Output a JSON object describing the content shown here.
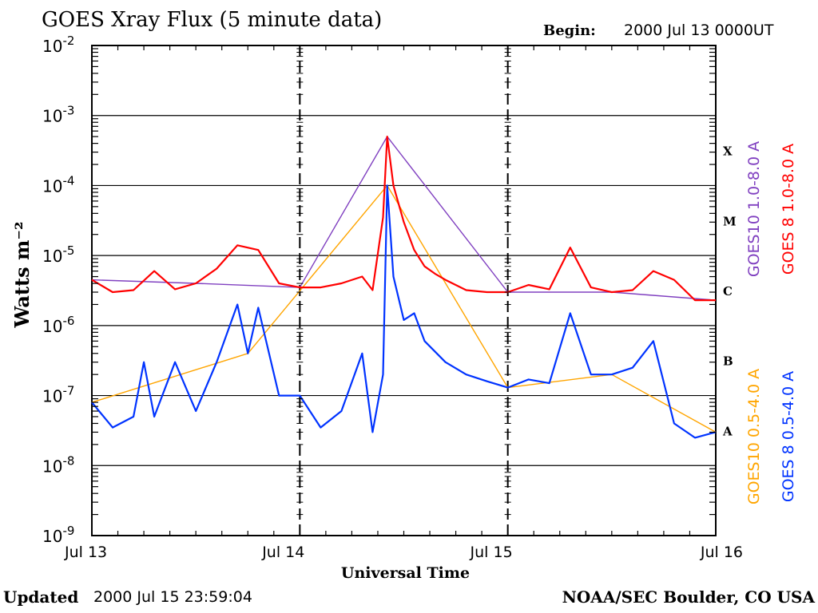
{
  "header": {
    "title": "GOES Xray Flux (5 minute data)",
    "begin_label": "Begin:",
    "begin_value": "2000 Jul 13 0000UT"
  },
  "footer": {
    "updated_label": "Updated",
    "updated_value": "2000 Jul 15 23:59:04",
    "credit": "NOAA/SEC Boulder, CO USA"
  },
  "colors": {
    "goes8_long": "#ff0000",
    "goes10_long": "#8040c0",
    "goes8_short": "#0033ff",
    "goes10_short": "#ffa500",
    "frame": "#000000"
  },
  "chart_data": {
    "type": "line",
    "title": "GOES Xray Flux (5 minute data)",
    "xlabel": "Universal Time",
    "ylabel": "Watts m⁻²",
    "yscale": "log",
    "ylim": [
      1e-09,
      0.01
    ],
    "xlim": [
      "2000-07-13",
      "2000-07-16"
    ],
    "x_ticks": [
      "Jul 13",
      "Jul 14",
      "Jul 15",
      "Jul 16"
    ],
    "y_ticks": [
      {
        "mantissa": "10",
        "exp": "-9"
      },
      {
        "mantissa": "10",
        "exp": "-8"
      },
      {
        "mantissa": "10",
        "exp": "-7"
      },
      {
        "mantissa": "10",
        "exp": "-6"
      },
      {
        "mantissa": "10",
        "exp": "-5"
      },
      {
        "mantissa": "10",
        "exp": "-4"
      },
      {
        "mantissa": "10",
        "exp": "-3"
      },
      {
        "mantissa": "10",
        "exp": "-2"
      }
    ],
    "flare_classes": [
      "A",
      "B",
      "C",
      "M",
      "X"
    ],
    "grid": "horizontal at decades",
    "legend": [
      "GOES10 1.0-8.0 A",
      "GOES 8 1.0-8.0 A",
      "GOES10 0.5-4.0 A",
      "GOES 8 0.5-4.0 A"
    ],
    "series": [
      {
        "name": "GOES 8 1.0-8.0 A",
        "x": [
          0,
          0.1,
          0.2,
          0.3,
          0.4,
          0.5,
          0.6,
          0.7,
          0.8,
          0.9,
          1.0,
          1.1,
          1.2,
          1.3,
          1.35,
          1.4,
          1.42,
          1.45,
          1.5,
          1.55,
          1.6,
          1.65,
          1.7,
          1.8,
          1.9,
          2.0,
          2.1,
          2.2,
          2.3,
          2.4,
          2.5,
          2.6,
          2.7,
          2.8,
          2.9,
          3.0
        ],
        "values": [
          4.5e-06,
          3e-06,
          3.2e-06,
          6e-06,
          3.3e-06,
          4e-06,
          6.5e-06,
          1.4e-05,
          1.2e-05,
          4e-06,
          3.5e-06,
          3.5e-06,
          4e-06,
          5e-06,
          3.2e-06,
          3.5e-05,
          0.0005,
          0.0001,
          3e-05,
          1.2e-05,
          7e-06,
          5.5e-06,
          4.5e-06,
          3.2e-06,
          3e-06,
          3e-06,
          3.8e-06,
          3.3e-06,
          1.3e-05,
          3.5e-06,
          3e-06,
          3.2e-06,
          6e-06,
          4.5e-06,
          2.3e-06,
          2.3e-06
        ]
      },
      {
        "name": "GOES10 1.0-8.0 A",
        "x": [
          0,
          0.5,
          1.0,
          1.42,
          2.0,
          2.5,
          3.0
        ],
        "values": [
          4.5e-06,
          4e-06,
          3.5e-06,
          0.0005,
          3e-06,
          3e-06,
          2.3e-06
        ]
      },
      {
        "name": "GOES 8 0.5-4.0 A",
        "x": [
          0,
          0.1,
          0.2,
          0.25,
          0.3,
          0.4,
          0.5,
          0.6,
          0.7,
          0.75,
          0.8,
          0.9,
          1.0,
          1.1,
          1.2,
          1.3,
          1.35,
          1.4,
          1.42,
          1.45,
          1.5,
          1.55,
          1.6,
          1.7,
          1.8,
          1.9,
          2.0,
          2.1,
          2.2,
          2.3,
          2.4,
          2.5,
          2.6,
          2.7,
          2.8,
          2.9,
          3.0
        ],
        "values": [
          8e-08,
          3.5e-08,
          5e-08,
          3e-07,
          5e-08,
          3e-07,
          6e-08,
          3e-07,
          2e-06,
          4e-07,
          1.8e-06,
          1e-07,
          1e-07,
          3.5e-08,
          6e-08,
          4e-07,
          3e-08,
          2e-07,
          0.0001,
          5e-06,
          1.2e-06,
          1.5e-06,
          6e-07,
          3e-07,
          2e-07,
          1.6e-07,
          1.3e-07,
          1.7e-07,
          1.5e-07,
          1.5e-06,
          2e-07,
          2e-07,
          2.5e-07,
          6e-07,
          4e-08,
          2.5e-08,
          3e-08
        ]
      },
      {
        "name": "GOES10 0.5-4.0 A",
        "x": [
          0,
          0.75,
          1.42,
          2.0,
          2.5,
          3.0
        ],
        "values": [
          8e-08,
          4e-07,
          0.0001,
          1.3e-07,
          2e-07,
          3e-08
        ]
      }
    ]
  }
}
